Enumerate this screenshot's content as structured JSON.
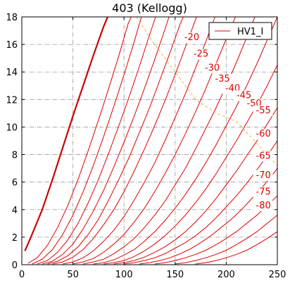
{
  "chart_data": {
    "type": "line",
    "title": "403 (Kellogg)",
    "xlabel": "",
    "ylabel": "",
    "xlim": [
      0,
      250
    ],
    "ylim": [
      0,
      18
    ],
    "xticks": [
      0,
      50,
      100,
      150,
      200,
      250
    ],
    "yticks": [
      0,
      2,
      4,
      6,
      8,
      10,
      12,
      14,
      16,
      18
    ],
    "grid": true,
    "legend": {
      "position": "top-right",
      "entries": [
        "HV1_I"
      ]
    },
    "colors": {
      "curves": "#e00000",
      "bold_curve": "#cc0000",
      "load_line": "#f0b040",
      "grid": "#999999"
    },
    "series": [
      {
        "label": "",
        "bold": true,
        "points": [
          [
            3,
            1.0
          ],
          [
            10,
            2.2
          ],
          [
            20,
            4.0
          ],
          [
            30,
            6.2
          ],
          [
            40,
            8.5
          ],
          [
            50,
            10.8
          ],
          [
            60,
            13.0
          ],
          [
            70,
            15.2
          ],
          [
            80,
            17.3
          ],
          [
            84,
            18.0
          ]
        ]
      },
      {
        "label": "",
        "points": [
          [
            6,
            0.1
          ],
          [
            15,
            0.5
          ],
          [
            25,
            1.4
          ],
          [
            35,
            2.7
          ],
          [
            45,
            4.3
          ],
          [
            55,
            6.2
          ],
          [
            65,
            8.3
          ],
          [
            75,
            10.5
          ],
          [
            85,
            12.8
          ],
          [
            95,
            15.2
          ],
          [
            104,
            17.5
          ],
          [
            107,
            18.0
          ]
        ]
      },
      {
        "label": "",
        "points": [
          [
            10,
            0.05
          ],
          [
            20,
            0.4
          ],
          [
            30,
            1.1
          ],
          [
            40,
            2.2
          ],
          [
            50,
            3.6
          ],
          [
            60,
            5.3
          ],
          [
            70,
            7.2
          ],
          [
            80,
            9.3
          ],
          [
            90,
            11.5
          ],
          [
            100,
            13.8
          ],
          [
            110,
            16.2
          ],
          [
            117,
            18.0
          ]
        ]
      },
      {
        "label": "",
        "points": [
          [
            15,
            0.05
          ],
          [
            25,
            0.3
          ],
          [
            35,
            0.9
          ],
          [
            45,
            1.8
          ],
          [
            55,
            3.0
          ],
          [
            65,
            4.5
          ],
          [
            75,
            6.2
          ],
          [
            85,
            8.1
          ],
          [
            95,
            10.1
          ],
          [
            105,
            12.2
          ],
          [
            115,
            14.4
          ],
          [
            125,
            16.7
          ],
          [
            131,
            18.0
          ]
        ]
      },
      {
        "label": "",
        "points": [
          [
            20,
            0.05
          ],
          [
            30,
            0.25
          ],
          [
            40,
            0.75
          ],
          [
            50,
            1.5
          ],
          [
            60,
            2.6
          ],
          [
            70,
            3.9
          ],
          [
            80,
            5.4
          ],
          [
            90,
            7.1
          ],
          [
            100,
            8.9
          ],
          [
            110,
            10.8
          ],
          [
            120,
            12.8
          ],
          [
            130,
            14.9
          ],
          [
            140,
            17.1
          ],
          [
            144,
            18.0
          ]
        ]
      },
      {
        "label": "-20",
        "points": [
          [
            25,
            0.05
          ],
          [
            35,
            0.25
          ],
          [
            45,
            0.65
          ],
          [
            55,
            1.3
          ],
          [
            65,
            2.2
          ],
          [
            75,
            3.3
          ],
          [
            85,
            4.7
          ],
          [
            95,
            6.2
          ],
          [
            105,
            7.8
          ],
          [
            115,
            9.6
          ],
          [
            125,
            11.4
          ],
          [
            135,
            13.4
          ],
          [
            145,
            15.4
          ],
          [
            155,
            17.5
          ],
          [
            158,
            18.0
          ]
        ]
      },
      {
        "label": "-25",
        "points": [
          [
            30,
            0.05
          ],
          [
            40,
            0.2
          ],
          [
            50,
            0.55
          ],
          [
            60,
            1.1
          ],
          [
            70,
            1.9
          ],
          [
            80,
            2.9
          ],
          [
            90,
            4.0
          ],
          [
            100,
            5.3
          ],
          [
            110,
            6.8
          ],
          [
            120,
            8.4
          ],
          [
            130,
            10.1
          ],
          [
            140,
            11.9
          ],
          [
            150,
            13.8
          ],
          [
            160,
            15.8
          ],
          [
            170,
            17.8
          ],
          [
            171,
            18.0
          ]
        ]
      },
      {
        "label": "-30",
        "points": [
          [
            40,
            0.05
          ],
          [
            50,
            0.2
          ],
          [
            60,
            0.5
          ],
          [
            70,
            1.0
          ],
          [
            80,
            1.7
          ],
          [
            90,
            2.5
          ],
          [
            100,
            3.5
          ],
          [
            110,
            4.7
          ],
          [
            120,
            6.0
          ],
          [
            130,
            7.4
          ],
          [
            140,
            9.0
          ],
          [
            150,
            10.7
          ],
          [
            160,
            12.4
          ],
          [
            170,
            14.3
          ],
          [
            180,
            16.2
          ],
          [
            189,
            18.0
          ]
        ]
      },
      {
        "label": "-35",
        "points": [
          [
            50,
            0.05
          ],
          [
            60,
            0.2
          ],
          [
            70,
            0.45
          ],
          [
            80,
            0.9
          ],
          [
            90,
            1.5
          ],
          [
            100,
            2.2
          ],
          [
            110,
            3.1
          ],
          [
            120,
            4.1
          ],
          [
            130,
            5.3
          ],
          [
            140,
            6.6
          ],
          [
            150,
            8.0
          ],
          [
            160,
            9.5
          ],
          [
            170,
            11.1
          ],
          [
            180,
            12.8
          ],
          [
            190,
            14.6
          ],
          [
            200,
            16.4
          ],
          [
            209,
            18.0
          ]
        ]
      },
      {
        "label": "-40",
        "points": [
          [
            60,
            0.05
          ],
          [
            70,
            0.2
          ],
          [
            80,
            0.4
          ],
          [
            90,
            0.8
          ],
          [
            100,
            1.3
          ],
          [
            110,
            1.9
          ],
          [
            120,
            2.7
          ],
          [
            130,
            3.6
          ],
          [
            140,
            4.6
          ],
          [
            150,
            5.8
          ],
          [
            160,
            7.0
          ],
          [
            170,
            8.4
          ],
          [
            180,
            9.9
          ],
          [
            190,
            11.4
          ],
          [
            200,
            13.0
          ],
          [
            210,
            14.7
          ],
          [
            220,
            16.5
          ],
          [
            228,
            18.0
          ]
        ]
      },
      {
        "label": "-45",
        "points": [
          [
            70,
            0.05
          ],
          [
            80,
            0.15
          ],
          [
            90,
            0.35
          ],
          [
            100,
            0.7
          ],
          [
            110,
            1.1
          ],
          [
            120,
            1.7
          ],
          [
            130,
            2.4
          ],
          [
            140,
            3.2
          ],
          [
            150,
            4.1
          ],
          [
            160,
            5.1
          ],
          [
            170,
            6.2
          ],
          [
            180,
            7.4
          ],
          [
            190,
            8.7
          ],
          [
            200,
            10.1
          ],
          [
            210,
            11.5
          ],
          [
            220,
            13.0
          ],
          [
            230,
            14.6
          ],
          [
            240,
            16.3
          ],
          [
            250,
            18.0
          ]
        ]
      },
      {
        "label": "-50",
        "points": [
          [
            80,
            0.05
          ],
          [
            90,
            0.15
          ],
          [
            100,
            0.3
          ],
          [
            110,
            0.6
          ],
          [
            120,
            1.0
          ],
          [
            130,
            1.5
          ],
          [
            140,
            2.1
          ],
          [
            150,
            2.8
          ],
          [
            160,
            3.6
          ],
          [
            170,
            4.5
          ],
          [
            180,
            5.5
          ],
          [
            190,
            6.6
          ],
          [
            200,
            7.8
          ],
          [
            210,
            9.0
          ],
          [
            220,
            10.3
          ],
          [
            230,
            11.6
          ],
          [
            240,
            13.0
          ],
          [
            250,
            14.5
          ]
        ]
      },
      {
        "label": "-55",
        "points": [
          [
            90,
            0.05
          ],
          [
            100,
            0.15
          ],
          [
            110,
            0.3
          ],
          [
            120,
            0.55
          ],
          [
            130,
            0.9
          ],
          [
            140,
            1.3
          ],
          [
            150,
            1.8
          ],
          [
            160,
            2.4
          ],
          [
            170,
            3.1
          ],
          [
            180,
            3.9
          ],
          [
            190,
            4.8
          ],
          [
            200,
            5.8
          ],
          [
            210,
            6.8
          ],
          [
            220,
            7.9
          ],
          [
            230,
            9.0
          ],
          [
            240,
            10.2
          ],
          [
            250,
            11.4
          ]
        ]
      },
      {
        "label": "-60",
        "points": [
          [
            100,
            0.05
          ],
          [
            110,
            0.15
          ],
          [
            120,
            0.3
          ],
          [
            130,
            0.5
          ],
          [
            140,
            0.8
          ],
          [
            150,
            1.2
          ],
          [
            160,
            1.6
          ],
          [
            170,
            2.1
          ],
          [
            180,
            2.7
          ],
          [
            190,
            3.4
          ],
          [
            200,
            4.2
          ],
          [
            210,
            5.0
          ],
          [
            220,
            5.9
          ],
          [
            230,
            6.9
          ],
          [
            240,
            7.9
          ],
          [
            250,
            9.0
          ]
        ]
      },
      {
        "label": "-65",
        "points": [
          [
            115,
            0.05
          ],
          [
            125,
            0.15
          ],
          [
            135,
            0.3
          ],
          [
            145,
            0.5
          ],
          [
            155,
            0.8
          ],
          [
            165,
            1.15
          ],
          [
            175,
            1.6
          ],
          [
            185,
            2.1
          ],
          [
            195,
            2.7
          ],
          [
            205,
            3.3
          ],
          [
            215,
            4.0
          ],
          [
            225,
            4.8
          ],
          [
            235,
            5.6
          ],
          [
            245,
            6.5
          ],
          [
            250,
            7.0
          ]
        ]
      },
      {
        "label": "-70",
        "points": [
          [
            130,
            0.05
          ],
          [
            140,
            0.15
          ],
          [
            150,
            0.3
          ],
          [
            160,
            0.5
          ],
          [
            170,
            0.75
          ],
          [
            180,
            1.05
          ],
          [
            190,
            1.45
          ],
          [
            200,
            1.9
          ],
          [
            210,
            2.4
          ],
          [
            220,
            3.0
          ],
          [
            230,
            3.6
          ],
          [
            240,
            4.3
          ],
          [
            250,
            5.0
          ]
        ]
      },
      {
        "label": "-75",
        "points": [
          [
            150,
            0.05
          ],
          [
            160,
            0.15
          ],
          [
            170,
            0.3
          ],
          [
            180,
            0.5
          ],
          [
            190,
            0.75
          ],
          [
            200,
            1.05
          ],
          [
            210,
            1.45
          ],
          [
            220,
            1.9
          ],
          [
            230,
            2.4
          ],
          [
            240,
            3.0
          ],
          [
            250,
            3.6
          ]
        ]
      },
      {
        "label": "-80",
        "points": [
          [
            170,
            0.05
          ],
          [
            180,
            0.15
          ],
          [
            190,
            0.3
          ],
          [
            200,
            0.5
          ],
          [
            210,
            0.75
          ],
          [
            220,
            1.05
          ],
          [
            230,
            1.45
          ],
          [
            240,
            1.9
          ],
          [
            250,
            2.4
          ]
        ]
      }
    ],
    "curve_label_positions": [
      {
        "label": "-20",
        "x": 159,
        "y": 16.3
      },
      {
        "label": "-25",
        "x": 168,
        "y": 15.1
      },
      {
        "label": "-30",
        "x": 179,
        "y": 14.1
      },
      {
        "label": "-35",
        "x": 189,
        "y": 13.3
      },
      {
        "label": "-40",
        "x": 199,
        "y": 12.6
      },
      {
        "label": "-45",
        "x": 210,
        "y": 12.1
      },
      {
        "label": "-50",
        "x": 220,
        "y": 11.5
      },
      {
        "label": "-55",
        "x": 229,
        "y": 11.0
      },
      {
        "label": "-60",
        "x": 229,
        "y": 9.3
      },
      {
        "label": "-65",
        "x": 229,
        "y": 7.7
      },
      {
        "label": "-70",
        "x": 229,
        "y": 6.3
      },
      {
        "label": "-75",
        "x": 229,
        "y": 5.1
      },
      {
        "label": "-80",
        "x": 229,
        "y": 4.1
      }
    ],
    "load_line": {
      "points": [
        [
          112,
          18.0
        ],
        [
          130,
          16.0
        ],
        [
          150,
          14.0
        ],
        [
          170,
          12.0
        ],
        [
          190,
          11.0
        ],
        [
          210,
          10.4
        ],
        [
          230,
          8.8
        ],
        [
          250,
          7.2
        ]
      ]
    }
  }
}
